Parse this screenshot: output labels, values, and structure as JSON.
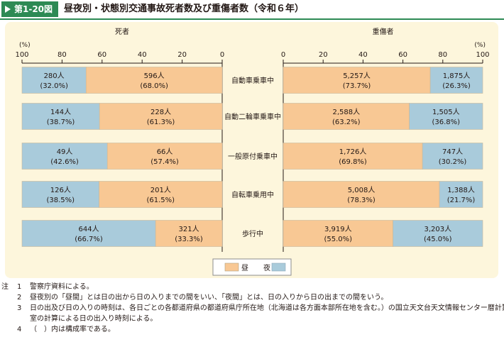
{
  "figure_tag": "第1-20図",
  "figure_title": "昼夜別・状態別交通事故死者数及び重傷者数（令和６年）",
  "colors": {
    "day": "#f8c894",
    "night": "#a9cbdb",
    "accent": "#2d8a54",
    "panel": "#fdf6dc"
  },
  "chart_data": [
    {
      "type": "bar",
      "title": "死者",
      "unit_label": "(%)",
      "xlim": [
        100,
        0
      ],
      "ticks": [
        "100",
        "80",
        "60",
        "40",
        "20",
        "0"
      ],
      "categories": [
        "自動車乗車中",
        "自動二輪車乗車中",
        "一般原付乗車中",
        "自転車乗用中",
        "歩行中"
      ],
      "series": [
        {
          "name": "昼",
          "values": [
            68.0,
            61.3,
            57.4,
            61.5,
            33.3
          ],
          "labels": [
            "596人",
            "228人",
            "66人",
            "201人",
            "321人"
          ],
          "pct_labels": [
            "(68.0%)",
            "(61.3%)",
            "(57.4%)",
            "(61.5%)",
            "(33.3%)"
          ]
        },
        {
          "name": "夜",
          "values": [
            32.0,
            38.7,
            42.6,
            38.5,
            66.7
          ],
          "labels": [
            "280人",
            "144人",
            "49人",
            "126人",
            "644人"
          ],
          "pct_labels": [
            "(32.0%)",
            "(38.7%)",
            "(42.6%)",
            "(38.5%)",
            "(66.7%)"
          ]
        }
      ]
    },
    {
      "type": "bar",
      "title": "重傷者",
      "unit_label": "(%)",
      "xlim": [
        0,
        100
      ],
      "ticks": [
        "0",
        "20",
        "40",
        "60",
        "80",
        "100"
      ],
      "categories": [
        "自動車乗車中",
        "自動二輪車乗車中",
        "一般原付乗車中",
        "自転車乗用中",
        "歩行中"
      ],
      "series": [
        {
          "name": "昼",
          "values": [
            73.7,
            63.2,
            69.8,
            78.3,
            55.0
          ],
          "labels": [
            "5,257人",
            "2,588人",
            "1,726人",
            "5,008人",
            "3,919人"
          ],
          "pct_labels": [
            "(73.7%)",
            "(63.2%)",
            "(69.8%)",
            "(78.3%)",
            "(55.0%)"
          ]
        },
        {
          "name": "夜",
          "values": [
            26.3,
            36.8,
            30.2,
            21.7,
            45.0
          ],
          "labels": [
            "1,875人",
            "1,505人",
            "747人",
            "1,388人",
            "3,203人"
          ],
          "pct_labels": [
            "(26.3%)",
            "(36.8%)",
            "(30.2%)",
            "(21.7%)",
            "(45.0%)"
          ]
        }
      ]
    }
  ],
  "legend": {
    "day": "昼",
    "night": "夜"
  },
  "notes": {
    "label": "注",
    "items": [
      {
        "num": "1",
        "lines": [
          "警察庁資料による。"
        ]
      },
      {
        "num": "2",
        "lines": [
          "昼夜別の「昼間」とは日の出から日の入りまでの間をいい、「夜間」とは、日の入りから日の出までの間をいう。"
        ]
      },
      {
        "num": "3",
        "lines": [
          "日の出及び日の入りの時刻は、各日ごとの各都道府県の都道府県庁所在地（北海道は各方面本部所在地を含む。）の国立天文台天文情報センター暦計算",
          "室の計算による日の出入り時刻による。"
        ]
      },
      {
        "num": "4",
        "lines": [
          "（　）内は構成率である。"
        ]
      }
    ]
  }
}
